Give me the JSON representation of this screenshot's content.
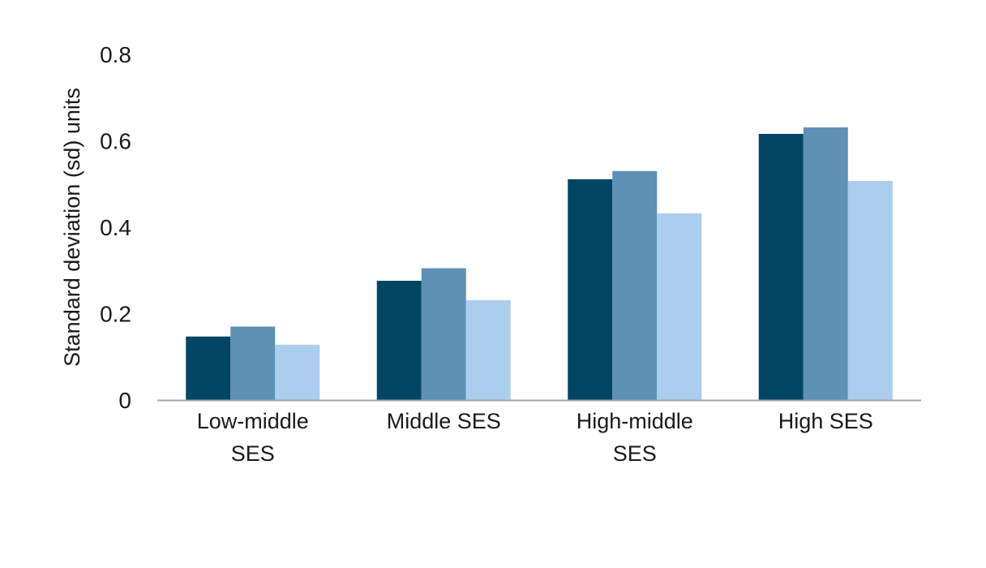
{
  "chart_data": {
    "type": "bar",
    "ylabel": "Standard deviation (sd) units",
    "ylim": [
      0,
      0.8
    ],
    "yticks": [
      "0",
      "0.2",
      "0.4",
      "0.6",
      "0.8"
    ],
    "categories": [
      [
        "Low-middle",
        "SES"
      ],
      [
        "Middle SES"
      ],
      [
        "High-middle",
        "SES"
      ],
      [
        "High SES"
      ]
    ],
    "series": [
      {
        "color": "#034564",
        "values": [
          0.147,
          0.276,
          0.511,
          0.616
        ]
      },
      {
        "color": "#5d91b6",
        "values": [
          0.17,
          0.305,
          0.53,
          0.631
        ]
      },
      {
        "color": "#abcdee",
        "values": [
          0.128,
          0.231,
          0.432,
          0.507
        ]
      }
    ],
    "grid": false,
    "legend": "none",
    "axis_color": "#a6a6a6"
  }
}
